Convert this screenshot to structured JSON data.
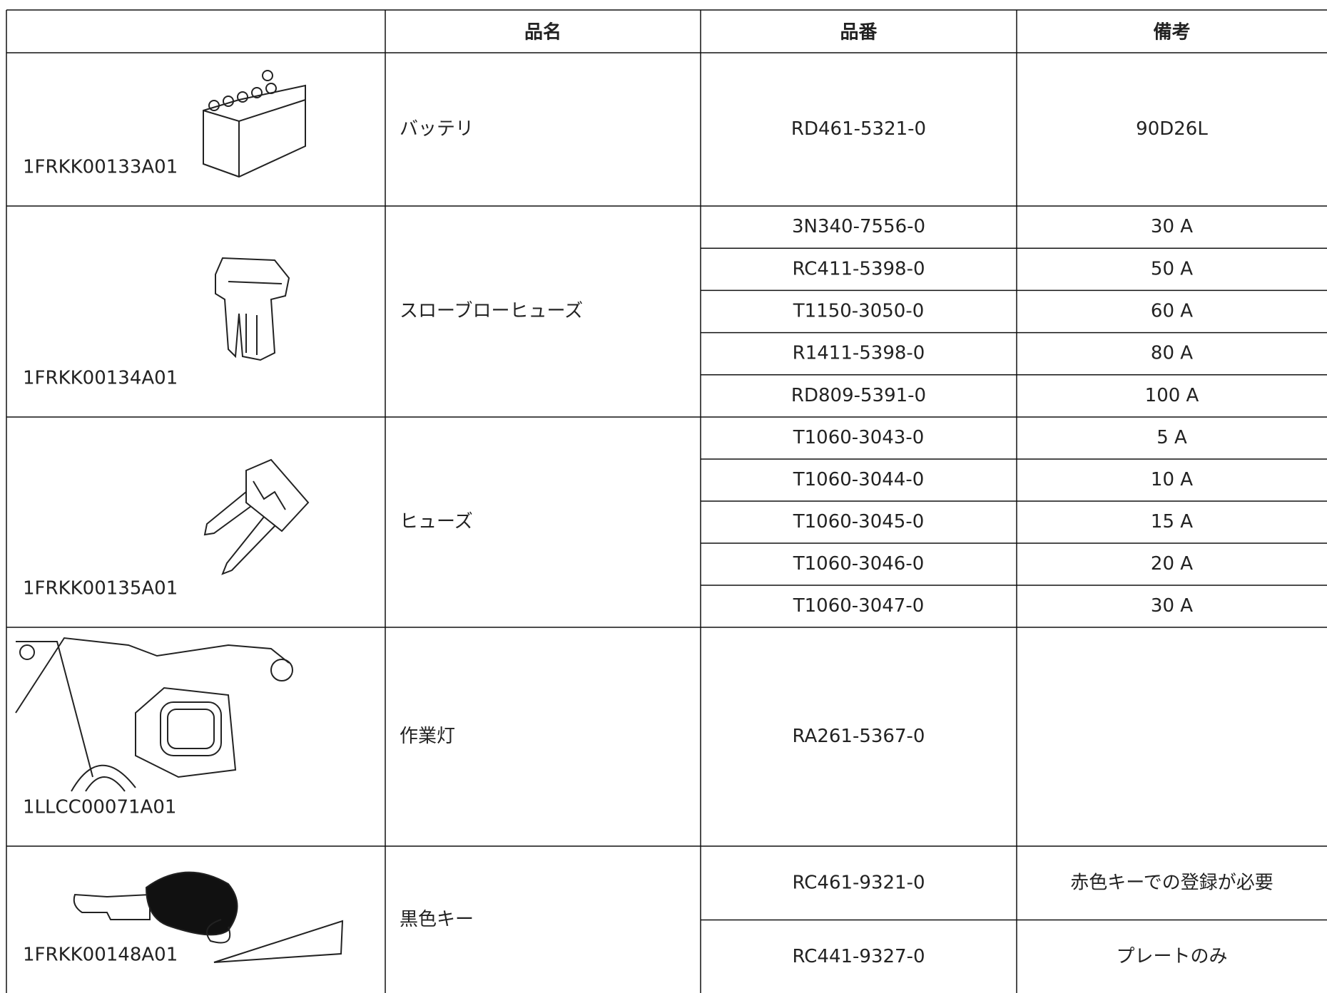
{
  "table": {
    "header": {
      "name": "品名",
      "part_no": "品番",
      "note": "備考"
    },
    "rows": [
      {
        "image_id": "1FRKK00133A01",
        "name": "バッテリ",
        "parts": [
          {
            "part_no": "RD461-5321-0",
            "note": "90D26L"
          }
        ]
      },
      {
        "image_id": "1FRKK00134A01",
        "name": "スローブローヒューズ",
        "parts": [
          {
            "part_no": "3N340-7556-0",
            "note": "30 A"
          },
          {
            "part_no": "RC411-5398-0",
            "note": "50 A"
          },
          {
            "part_no": "T1150-3050-0",
            "note": "60 A"
          },
          {
            "part_no": "R1411-5398-0",
            "note": "80 A"
          },
          {
            "part_no": "RD809-5391-0",
            "note": "100 A"
          }
        ]
      },
      {
        "image_id": "1FRKK00135A01",
        "name": "ヒューズ",
        "parts": [
          {
            "part_no": "T1060-3043-0",
            "note": "5 A"
          },
          {
            "part_no": "T1060-3044-0",
            "note": "10 A"
          },
          {
            "part_no": "T1060-3045-0",
            "note": "15 A"
          },
          {
            "part_no": "T1060-3046-0",
            "note": "20 A"
          },
          {
            "part_no": "T1060-3047-0",
            "note": "30 A"
          }
        ]
      },
      {
        "image_id": "1LLCC00071A01",
        "name": "作業灯",
        "parts": [
          {
            "part_no": "RA261-5367-0"
          }
        ]
      },
      {
        "image_id": "1FRKK00148A01",
        "name": "黒色キー",
        "parts": [
          {
            "part_no": "RC461-9321-0",
            "note": "赤色キーでの登録が必要"
          },
          {
            "part_no": "RC441-9327-0",
            "note": "プレートのみ"
          }
        ]
      }
    ]
  }
}
